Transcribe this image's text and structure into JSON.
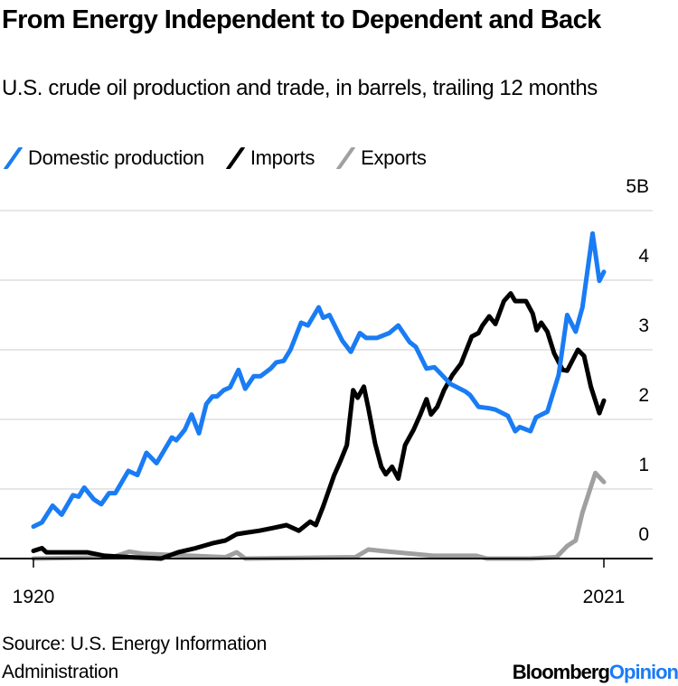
{
  "title": "From Energy Independent to Dependent and Back",
  "subtitle": "U.S. crude oil production and trade, in barrels, trailing 12 months",
  "source": "Source: U.S. Energy Information Administration",
  "logo": {
    "brand": "Bloomberg",
    "product": "Opinion",
    "accent": "#1a7cf4"
  },
  "chart_data": {
    "type": "line",
    "title": "From Energy Independent to Dependent and Back",
    "subtitle": "U.S. crude oil production and trade, in barrels, trailing 12 months",
    "xlim": [
      1920,
      2021
    ],
    "ylim": [
      0,
      5
    ],
    "x_ticks": [
      "1920",
      "2021"
    ],
    "y_ticks": [
      "0",
      "1",
      "2",
      "3",
      "4",
      "5B"
    ],
    "y_axis_side": "right",
    "grid": true,
    "legend_position": "top-left",
    "series": [
      {
        "name": "Domestic production",
        "color": "#1a7cf4",
        "points": [
          [
            1920,
            0.46
          ],
          [
            1921.5,
            0.52
          ],
          [
            1923.4,
            0.76
          ],
          [
            1925,
            0.63
          ],
          [
            1927,
            0.91
          ],
          [
            1928,
            0.89
          ],
          [
            1929,
            1.02
          ],
          [
            1930.7,
            0.85
          ],
          [
            1932,
            0.78
          ],
          [
            1933.4,
            0.94
          ],
          [
            1934.5,
            0.94
          ],
          [
            1936.8,
            1.26
          ],
          [
            1938.4,
            1.2
          ],
          [
            1940,
            1.52
          ],
          [
            1941.8,
            1.37
          ],
          [
            1944.5,
            1.74
          ],
          [
            1945.3,
            1.7
          ],
          [
            1946.8,
            1.85
          ],
          [
            1948,
            2.07
          ],
          [
            1949.3,
            1.8
          ],
          [
            1950.6,
            2.22
          ],
          [
            1951.7,
            2.33
          ],
          [
            1952.5,
            2.33
          ],
          [
            1953.7,
            2.42
          ],
          [
            1954.8,
            2.46
          ],
          [
            1956.3,
            2.71
          ],
          [
            1957.5,
            2.44
          ],
          [
            1959,
            2.62
          ],
          [
            1960.2,
            2.62
          ],
          [
            1962,
            2.73
          ],
          [
            1963,
            2.82
          ],
          [
            1964.3,
            2.84
          ],
          [
            1965.5,
            3.0
          ],
          [
            1967.4,
            3.39
          ],
          [
            1968.6,
            3.35
          ],
          [
            1970.5,
            3.61
          ],
          [
            1971.3,
            3.46
          ],
          [
            1972.4,
            3.5
          ],
          [
            1974.7,
            3.13
          ],
          [
            1976.2,
            2.97
          ],
          [
            1977.8,
            3.24
          ],
          [
            1978.9,
            3.17
          ],
          [
            1980.8,
            3.17
          ],
          [
            1983,
            3.24
          ],
          [
            1984.6,
            3.35
          ],
          [
            1986.6,
            3.11
          ],
          [
            1987.7,
            3.04
          ],
          [
            1989.6,
            2.73
          ],
          [
            1991,
            2.75
          ],
          [
            1992.3,
            2.64
          ],
          [
            1993.8,
            2.51
          ],
          [
            1996.5,
            2.4
          ],
          [
            1997.3,
            2.35
          ],
          [
            1998.8,
            2.18
          ],
          [
            2000.7,
            2.16
          ],
          [
            2001.8,
            2.14
          ],
          [
            2004,
            2.05
          ],
          [
            2005.3,
            1.83
          ],
          [
            2006.1,
            1.89
          ],
          [
            2008,
            1.83
          ],
          [
            2009,
            2.03
          ],
          [
            2011,
            2.11
          ],
          [
            2013,
            2.64
          ],
          [
            2014.5,
            3.5
          ],
          [
            2016,
            3.26
          ],
          [
            2017.2,
            3.61
          ],
          [
            2019,
            4.67
          ],
          [
            2020.2,
            3.99
          ],
          [
            2021,
            4.12
          ]
        ]
      },
      {
        "name": "Imports",
        "color": "#000000",
        "points": [
          [
            1920,
            0.11
          ],
          [
            1921.5,
            0.15
          ],
          [
            1922.3,
            0.09
          ],
          [
            1929.5,
            0.09
          ],
          [
            1932.6,
            0.04
          ],
          [
            1937,
            0.02
          ],
          [
            1942.6,
            0.0
          ],
          [
            1945.6,
            0.09
          ],
          [
            1948.7,
            0.15
          ],
          [
            1951.7,
            0.22
          ],
          [
            1954,
            0.26
          ],
          [
            1956,
            0.35
          ],
          [
            1957.5,
            0.37
          ],
          [
            1960,
            0.4
          ],
          [
            1962.5,
            0.44
          ],
          [
            1964.8,
            0.48
          ],
          [
            1967,
            0.4
          ],
          [
            1969,
            0.53
          ],
          [
            1970,
            0.48
          ],
          [
            1971.3,
            0.75
          ],
          [
            1973.2,
            1.19
          ],
          [
            1974.3,
            1.39
          ],
          [
            1975.5,
            1.63
          ],
          [
            1976.6,
            2.42
          ],
          [
            1977.4,
            2.31
          ],
          [
            1978.5,
            2.47
          ],
          [
            1979.3,
            2.16
          ],
          [
            1980.5,
            1.65
          ],
          [
            1981.6,
            1.32
          ],
          [
            1982.4,
            1.21
          ],
          [
            1983.5,
            1.32
          ],
          [
            1984.6,
            1.15
          ],
          [
            1985.8,
            1.63
          ],
          [
            1987.3,
            1.85
          ],
          [
            1988.5,
            2.07
          ],
          [
            1989.6,
            2.29
          ],
          [
            1990.4,
            2.07
          ],
          [
            1991.5,
            2.18
          ],
          [
            1992.7,
            2.42
          ],
          [
            1994.2,
            2.64
          ],
          [
            1995.7,
            2.8
          ],
          [
            1997.6,
            3.19
          ],
          [
            1998.8,
            3.24
          ],
          [
            1999.5,
            3.35
          ],
          [
            2000.7,
            3.48
          ],
          [
            2001.8,
            3.37
          ],
          [
            2003.3,
            3.7
          ],
          [
            2004.5,
            3.81
          ],
          [
            2005.3,
            3.7
          ],
          [
            2007.2,
            3.7
          ],
          [
            2008.4,
            3.52
          ],
          [
            2009.1,
            3.28
          ],
          [
            2009.9,
            3.39
          ],
          [
            2011,
            3.26
          ],
          [
            2012.2,
            2.95
          ],
          [
            2013.7,
            2.71
          ],
          [
            2014.5,
            2.7
          ],
          [
            2016.4,
            3.0
          ],
          [
            2017.5,
            2.91
          ],
          [
            2018.7,
            2.47
          ],
          [
            2020.2,
            2.09
          ],
          [
            2021,
            2.27
          ]
        ]
      },
      {
        "name": "Exports",
        "color": "#a0a0a0",
        "points": [
          [
            1920,
            0.0
          ],
          [
            1934,
            0.02
          ],
          [
            1937,
            0.1
          ],
          [
            1939.3,
            0.07
          ],
          [
            1954,
            0.02
          ],
          [
            1956,
            0.09
          ],
          [
            1957.5,
            0.0
          ],
          [
            1977,
            0.02
          ],
          [
            1979.3,
            0.13
          ],
          [
            1981.6,
            0.11
          ],
          [
            1985.4,
            0.08
          ],
          [
            1990.8,
            0.04
          ],
          [
            1998.4,
            0.04
          ],
          [
            2000.3,
            0.0
          ],
          [
            2008,
            0.0
          ],
          [
            2012.6,
            0.02
          ],
          [
            2014.5,
            0.18
          ],
          [
            2016,
            0.26
          ],
          [
            2017.2,
            0.66
          ],
          [
            2019.5,
            1.23
          ],
          [
            2021,
            1.1
          ]
        ]
      }
    ]
  }
}
